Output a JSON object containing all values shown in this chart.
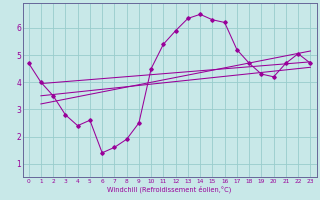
{
  "xlabel": "Windchill (Refroidissement éolien,°C)",
  "bg_color": "#c8e8e8",
  "grid_color": "#99cccc",
  "line_color": "#990099",
  "spine_color": "#666699",
  "xlim": [
    -0.5,
    23.5
  ],
  "ylim": [
    0.5,
    6.9
  ],
  "xticks": [
    0,
    1,
    2,
    3,
    4,
    5,
    6,
    7,
    8,
    9,
    10,
    11,
    12,
    13,
    14,
    15,
    16,
    17,
    18,
    19,
    20,
    21,
    22,
    23
  ],
  "yticks": [
    1,
    2,
    3,
    4,
    5,
    6
  ],
  "main_x": [
    0,
    1,
    2,
    3,
    4,
    5,
    6,
    7,
    8,
    9,
    10,
    11,
    12,
    13,
    14,
    15,
    16,
    17,
    18,
    19,
    20,
    21,
    22,
    23
  ],
  "main_y": [
    4.7,
    4.0,
    3.5,
    2.8,
    2.4,
    2.6,
    1.4,
    1.6,
    1.9,
    2.5,
    4.5,
    5.4,
    5.9,
    6.35,
    6.5,
    6.3,
    6.2,
    5.2,
    4.7,
    4.3,
    4.2,
    4.7,
    5.05,
    4.7
  ],
  "trend1_x": [
    1,
    23
  ],
  "trend1_y": [
    3.95,
    4.75
  ],
  "trend2_x": [
    1,
    23
  ],
  "trend2_y": [
    3.5,
    4.55
  ],
  "trend3_x": [
    1,
    23
  ],
  "trend3_y": [
    3.2,
    5.15
  ]
}
